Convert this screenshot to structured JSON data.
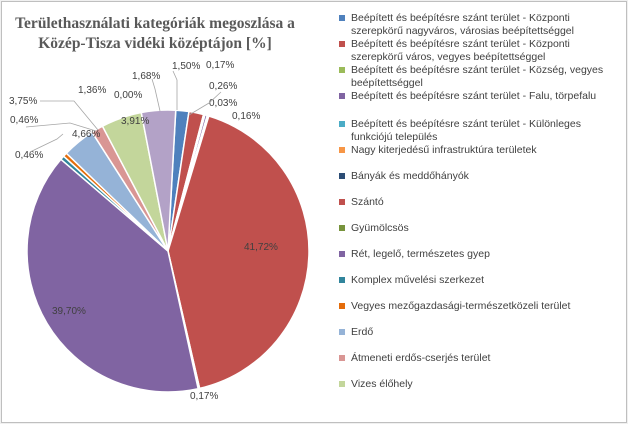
{
  "chart_data": {
    "type": "pie",
    "title": "Területhasználati kategóriák megoszlása a Közép-Tisza vidéki középtájon [%]",
    "legend_position": "right",
    "slices": [
      {
        "name": "Beépített és beépítésre szánt terület - Központi szerepkörű nagyváros, városias beépítettséggel",
        "value": 1.5,
        "label": "1,50%",
        "color": "#4f81bd"
      },
      {
        "name": "Beépített és beépítésre szánt terület - Központi szerepkörű város, vegyes beépítettséggel",
        "value": 1.68,
        "label": "1,68%",
        "color": "#c0504d"
      },
      {
        "name": "Beépített és beépítésre szánt terület - Község, vegyes beépítettséggel",
        "value": 0.17,
        "label": "0,17%",
        "color": "#9bbb59"
      },
      {
        "name": "Beépített és beépítésre szánt terület - Falu, törpefalu",
        "value": 0.26,
        "label": "0,26%",
        "color": "#8064a2"
      },
      {
        "name": "Beépített és beépítésre szánt terület - Különleges funkciójú település",
        "value": 0.03,
        "label": "0,03%",
        "color": "#4bacc6"
      },
      {
        "name": "Nagy kiterjedésű infrastruktúra területek",
        "value": 0.16,
        "label": "0,16%",
        "color": "#f79646"
      },
      {
        "name": "Bányák és meddőhányók",
        "value": 0.0,
        "label": "",
        "color": "#2c4d75"
      },
      {
        "name": "Szántó",
        "value": 41.72,
        "label": "41,72%",
        "color": "#c0504d"
      },
      {
        "name": "Gyümölcsös",
        "value": 0.17,
        "label": "0,17%",
        "color": "#77933c"
      },
      {
        "name": "Rét, legelő, természetes gyep",
        "value": 39.7,
        "label": "39,70%",
        "color": "#8064a2"
      },
      {
        "name": "Komplex művelési szerkezet",
        "value": 0.46,
        "label": "0,46%",
        "color": "#31859c"
      },
      {
        "name": "Vegyes mezőgazdasági-természetközeli terület",
        "value": 0.46,
        "label": "0,46%",
        "color": "#e46c0a"
      },
      {
        "name": "Erdő",
        "value": 3.75,
        "label": "3,75%",
        "color": "#95b3d7"
      },
      {
        "name": "Átmeneti erdős-cserjés terület",
        "value": 1.36,
        "label": "1,36%",
        "color": "#d99694"
      },
      {
        "name": "Vizes élőhely",
        "value": 4.66,
        "label": "4,66%",
        "color": "#c3d69b"
      },
      {
        "name": "",
        "value": 0.0,
        "label": "0,00%",
        "color": "#b3a2c7"
      },
      {
        "name": "",
        "value": 3.91,
        "label": "3,91%",
        "color": "#b3a2c7"
      }
    ]
  }
}
